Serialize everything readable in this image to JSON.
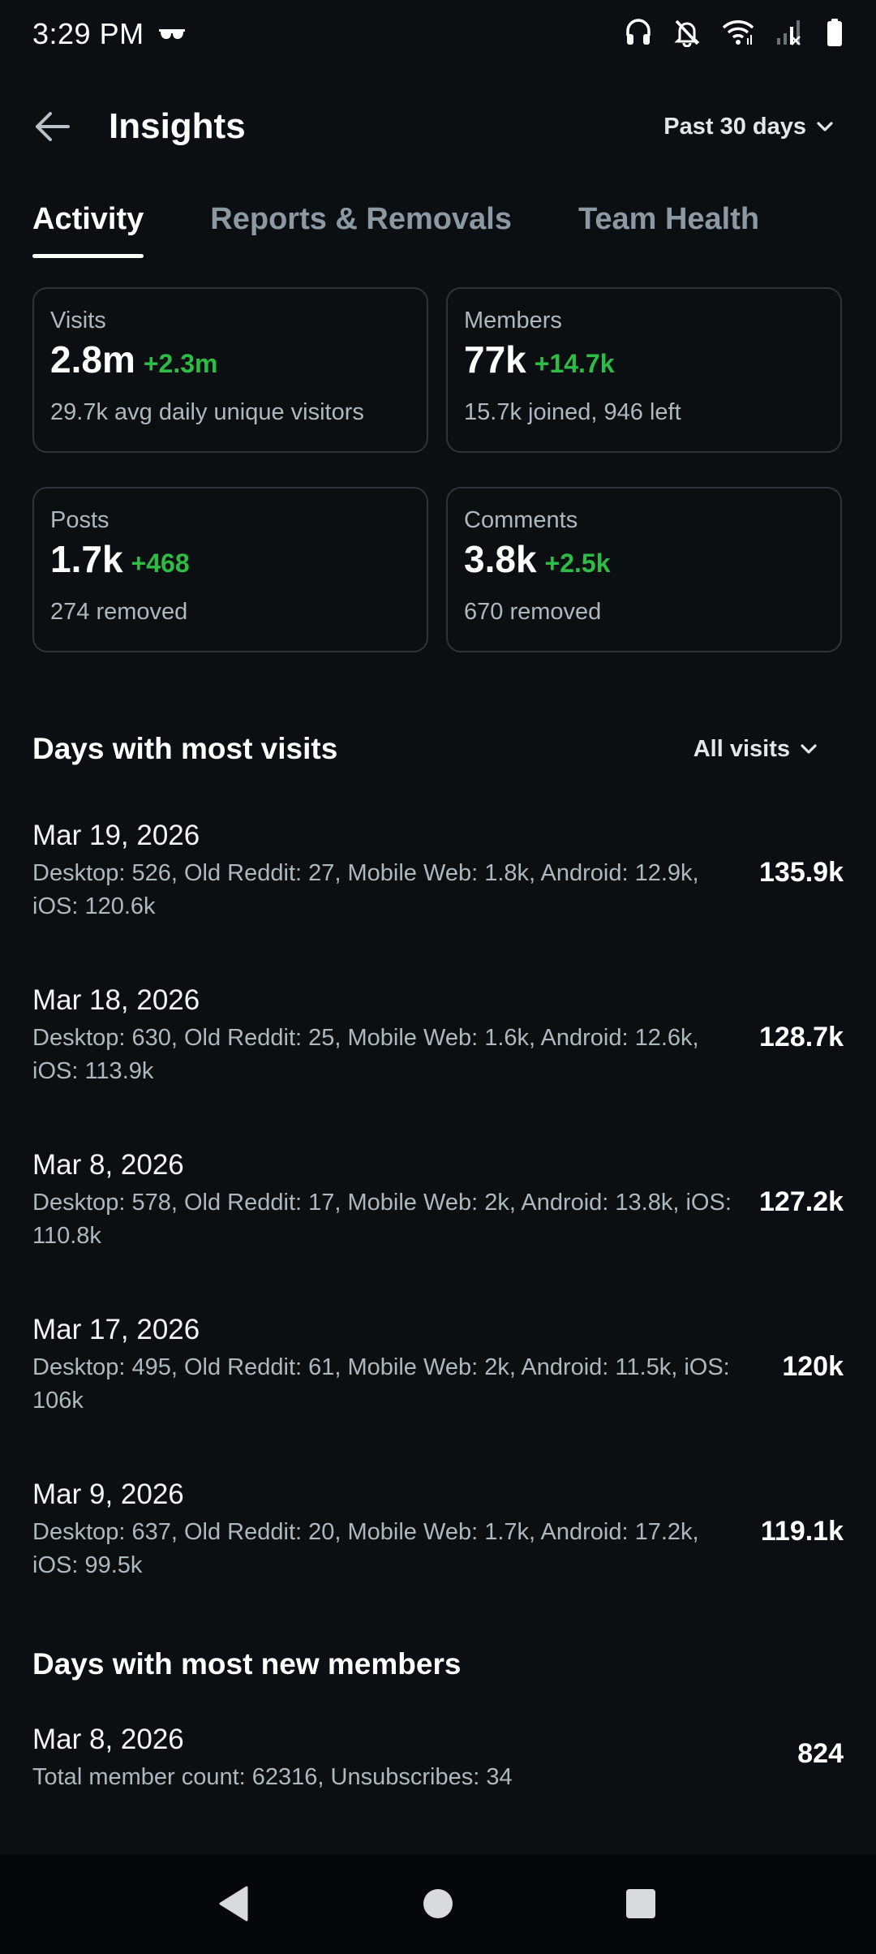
{
  "status_bar": {
    "time": "3:29 PM",
    "icons": [
      "glasses-icon",
      "headphones-icon",
      "bell-off-icon",
      "wifi-icon",
      "signal-icon",
      "battery-icon"
    ]
  },
  "header": {
    "title": "Insights",
    "date_range": "Past 30 days"
  },
  "tabs": [
    {
      "label": "Activity",
      "active": true
    },
    {
      "label": "Reports & Removals",
      "active": false
    },
    {
      "label": "Team Health",
      "active": false
    }
  ],
  "cards": [
    {
      "label": "Visits",
      "value": "2.8m",
      "delta": "+2.3m",
      "sub": "29.7k avg daily unique visitors"
    },
    {
      "label": "Members",
      "value": "77k",
      "delta": "+14.7k",
      "sub": "15.7k joined, 946 left"
    },
    {
      "label": "Posts",
      "value": "1.7k",
      "delta": "+468",
      "sub": "274 removed"
    },
    {
      "label": "Comments",
      "value": "3.8k",
      "delta": "+2.5k",
      "sub": "670 removed"
    }
  ],
  "visits_section": {
    "title": "Days with most visits",
    "filter": "All visits",
    "rows": [
      {
        "date": "Mar 19, 2026",
        "detail": "Desktop: 526, Old Reddit: 27, Mobile Web: 1.8k, Android: 12.9k, iOS: 120.6k",
        "total": "135.9k"
      },
      {
        "date": "Mar 18, 2026",
        "detail": "Desktop: 630, Old Reddit: 25, Mobile Web: 1.6k, Android: 12.6k, iOS: 113.9k",
        "total": "128.7k"
      },
      {
        "date": "Mar 8, 2026",
        "detail": "Desktop: 578, Old Reddit: 17, Mobile Web: 2k, Android: 13.8k, iOS: 110.8k",
        "total": "127.2k"
      },
      {
        "date": "Mar 17, 2026",
        "detail": "Desktop: 495, Old Reddit: 61, Mobile Web: 2k, Android: 11.5k, iOS: 106k",
        "total": "120k"
      },
      {
        "date": "Mar 9, 2026",
        "detail": "Desktop: 637, Old Reddit: 20, Mobile Web: 1.7k, Android: 17.2k, iOS: 99.5k",
        "total": "119.1k"
      }
    ]
  },
  "members_section": {
    "title": "Days with most new members",
    "rows": [
      {
        "date": "Mar 8, 2026",
        "detail": "Total member count: 62316, Unsubscribes: 34",
        "total": "824"
      }
    ]
  },
  "colors": {
    "background": "#0b0f12",
    "positive": "#2dbd46",
    "muted_text": "#aeb8bf",
    "card_border": "#2e3439"
  },
  "nav_bar": {
    "icons": [
      "back-triangle-icon",
      "home-circle-icon",
      "recents-square-icon"
    ]
  }
}
